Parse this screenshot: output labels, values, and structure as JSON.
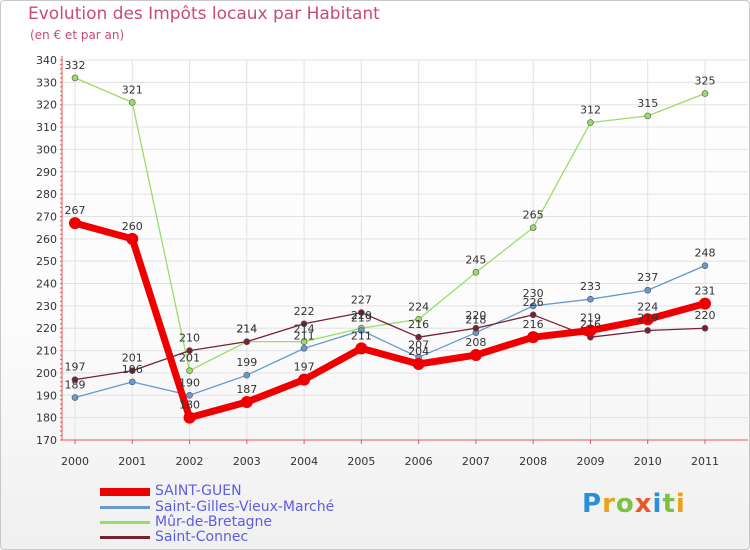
{
  "chart_data": {
    "type": "line",
    "title": "Evolution des Impôts locaux par Habitant",
    "subtitle": "(en € et par an)",
    "xlabel": "",
    "ylabel": "",
    "categories": [
      "2000",
      "2001",
      "2002",
      "2003",
      "2004",
      "2005",
      "2006",
      "2007",
      "2008",
      "2009",
      "2010",
      "2011"
    ],
    "ylim": [
      170,
      340
    ],
    "yticks": [
      170,
      180,
      190,
      200,
      210,
      220,
      230,
      240,
      250,
      260,
      270,
      280,
      290,
      300,
      310,
      320,
      330,
      340
    ],
    "grid": true,
    "legend_position": "bottom-left",
    "series": [
      {
        "name": "Mûr-de-Bretagne",
        "color": "#99dd66",
        "values": [
          332,
          321,
          201,
          214,
          214,
          220,
          224,
          245,
          265,
          312,
          315,
          325
        ]
      },
      {
        "name": "Saint-Gilles-Vieux-Marché",
        "color": "#6699cc",
        "values": [
          189,
          196,
          190,
          199,
          211,
          219,
          207,
          218,
          230,
          233,
          237,
          248
        ]
      },
      {
        "name": "Saint-Connec",
        "color": "#772233",
        "values": [
          197,
          201,
          210,
          214,
          222,
          227,
          216,
          220,
          226,
          216,
          219,
          220
        ]
      },
      {
        "name": "SAINT-GUEN",
        "color": "#ee0000",
        "values": [
          267,
          260,
          180,
          187,
          197,
          211,
          204,
          208,
          216,
          219,
          224,
          231
        ]
      }
    ],
    "data_labels": [
      {
        "series": "Mûr-de-Bretagne",
        "values": [
          "332",
          "321",
          "201",
          "214",
          "214",
          "220",
          "224",
          "245",
          "265",
          "312",
          "315",
          "325"
        ]
      },
      {
        "series": "Saint-Gilles-Vieux-Marché",
        "values": [
          "189",
          "196",
          "190",
          "199",
          "211",
          "219",
          "207",
          "218",
          "230",
          "233",
          "237",
          "248"
        ]
      },
      {
        "series": "Saint-Connec",
        "values": [
          "197",
          "201",
          "210",
          "214",
          "222",
          "227",
          "216",
          "220",
          "226",
          "216",
          "219",
          "220"
        ]
      },
      {
        "series": "SAINT-GUEN",
        "values": [
          "267",
          "260",
          "180",
          "187",
          "197",
          "211",
          "204",
          "208",
          "216",
          "219",
          "224",
          "231"
        ]
      }
    ]
  },
  "legend": {
    "items": [
      {
        "label": "SAINT-GUEN",
        "color": "#ee0000"
      },
      {
        "label": "Saint-Gilles-Vieux-Marché",
        "color": "#6699cc"
      },
      {
        "label": "Mûr-de-Bretagne",
        "color": "#99dd66"
      },
      {
        "label": "Saint-Connec",
        "color": "#772233"
      }
    ]
  },
  "logo": {
    "text": "Proxiti",
    "colors": [
      "#2a8fd6",
      "#e8a317",
      "#7cc242",
      "#e65a2a",
      "#2a8fd6",
      "#7cc242",
      "#e8a317"
    ]
  }
}
